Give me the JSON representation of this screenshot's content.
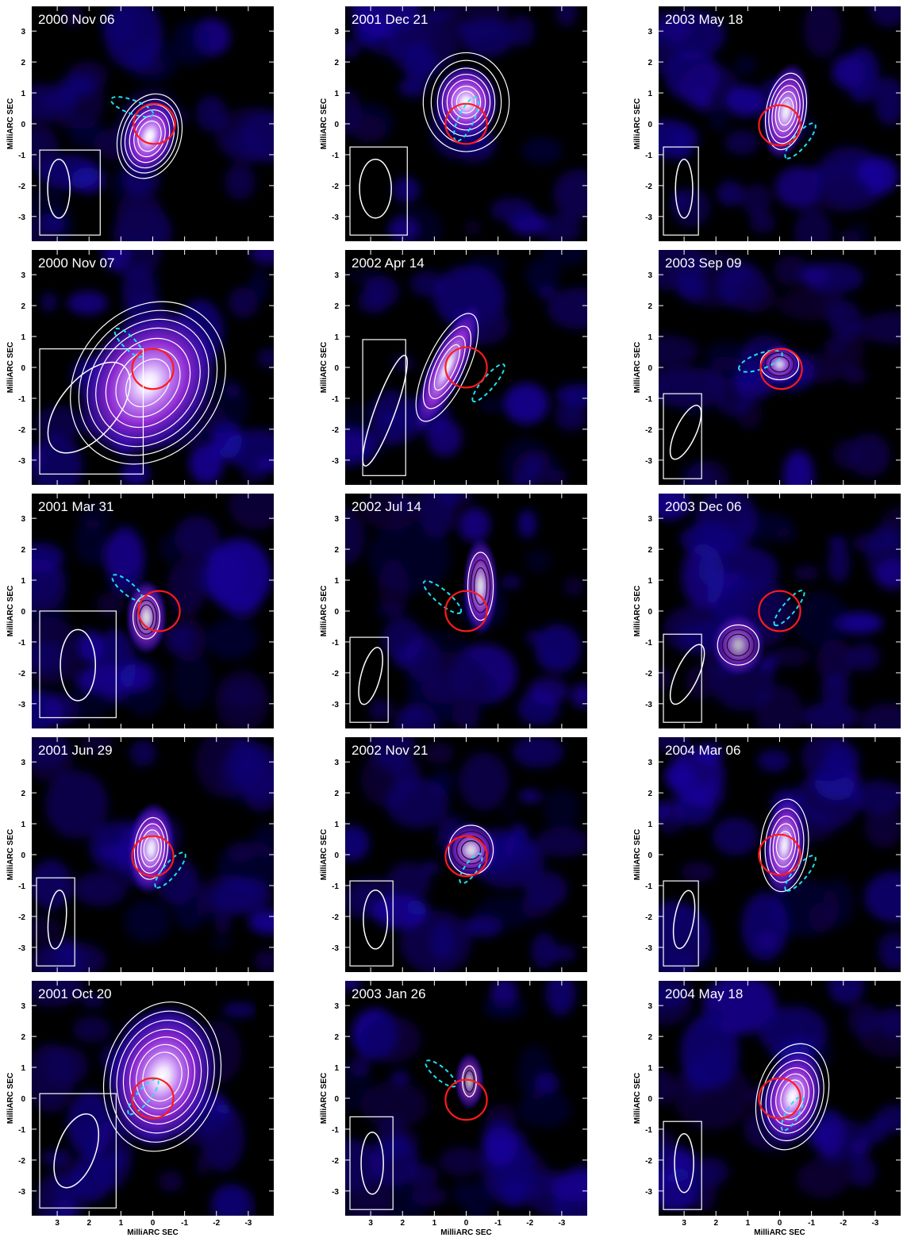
{
  "axes": {
    "ylabel": "MilliARC SEC",
    "xlabel": "MilliARC SEC",
    "range": [
      3.8,
      -3.8
    ],
    "ticks": [
      3,
      2,
      1,
      0,
      -1,
      -2,
      -3
    ]
  },
  "panels": [
    {
      "date": "2000 Nov 06",
      "core": [
        0.1,
        -0.4
      ],
      "core_size": [
        0.45,
        0.7
      ],
      "core_pa": 18,
      "intensity": 1.0,
      "contours": [
        [
          0.35,
          0.5
        ],
        [
          0.47,
          0.68
        ],
        [
          0.6,
          0.87
        ],
        [
          0.74,
          1.05
        ],
        [
          0.86,
          1.22
        ],
        [
          0.98,
          1.4
        ]
      ],
      "red": [
        -0.05,
        0.0
      ],
      "cyan": [
        0.65,
        0.55,
        0.7,
        0.22,
        20
      ],
      "beam_box": [
        3.55,
        -0.85,
        1.9,
        2.75
      ],
      "beam": [
        2.95,
        -2.1,
        0.35,
        0.95,
        0
      ]
    },
    {
      "date": "2001 Dec 21",
      "core": [
        0.0,
        0.7
      ],
      "core_size": [
        0.55,
        0.65
      ],
      "core_pa": 0,
      "intensity": 1.0,
      "contours": [
        [
          0.3,
          0.35
        ],
        [
          0.45,
          0.52
        ],
        [
          0.6,
          0.72
        ],
        [
          0.75,
          0.9
        ],
        [
          0.9,
          1.1
        ],
        [
          1.1,
          1.35
        ],
        [
          1.35,
          1.6
        ]
      ],
      "red": [
        0.0,
        0.0
      ],
      "cyan": [
        0.0,
        0.15,
        0.75,
        0.25,
        115
      ],
      "beam_box": [
        3.65,
        -0.75,
        1.8,
        2.85
      ],
      "beam": [
        2.85,
        -2.1,
        0.5,
        0.95,
        0
      ]
    },
    {
      "date": "2003 May 18",
      "core": [
        -0.2,
        0.4
      ],
      "core_size": [
        0.38,
        0.85
      ],
      "core_pa": 10,
      "intensity": 0.95,
      "contours": [
        [
          0.22,
          0.45
        ],
        [
          0.32,
          0.65
        ],
        [
          0.42,
          0.85
        ],
        [
          0.52,
          1.05
        ],
        [
          0.62,
          1.25
        ]
      ],
      "red": [
        0.0,
        -0.05
      ],
      "cyan": [
        -0.65,
        -0.55,
        0.7,
        0.22,
        130
      ],
      "beam_box": [
        3.65,
        -0.75,
        1.1,
        2.85
      ],
      "beam": [
        3.0,
        -2.1,
        0.27,
        0.95,
        0
      ]
    },
    {
      "date": "2000 Nov 07",
      "core": [
        0.15,
        -0.5
      ],
      "core_size": [
        1.05,
        1.4
      ],
      "core_pa": 38,
      "intensity": 1.0,
      "contours": [
        [
          0.6,
          0.85
        ],
        [
          0.9,
          1.2
        ],
        [
          1.2,
          1.55
        ],
        [
          1.5,
          1.9
        ],
        [
          1.75,
          2.2
        ],
        [
          2.0,
          2.5
        ],
        [
          2.25,
          2.8
        ]
      ],
      "red": [
        0.0,
        -0.05
      ],
      "cyan": [
        0.75,
        0.8,
        0.6,
        0.2,
        45
      ],
      "beam_box": [
        3.55,
        0.6,
        3.25,
        4.05
      ],
      "beam": [
        2.0,
        -1.3,
        0.9,
        1.75,
        40
      ]
    },
    {
      "date": "2002 Apr 14",
      "core": [
        0.6,
        0.0
      ],
      "core_size": [
        0.3,
        1.2
      ],
      "core_pa": 25,
      "intensity": 0.95,
      "contours": [
        [
          0.25,
          0.8
        ],
        [
          0.38,
          1.1
        ],
        [
          0.5,
          1.45
        ],
        [
          0.65,
          1.9
        ]
      ],
      "red": [
        0.0,
        0.0
      ],
      "cyan": [
        -0.7,
        -0.5,
        0.75,
        0.2,
        130
      ],
      "beam_box": [
        3.25,
        0.9,
        1.35,
        4.4
      ],
      "beam": [
        2.55,
        -1.4,
        0.32,
        1.9,
        20
      ]
    },
    {
      "date": "2003 Sep 09",
      "core": [
        0.0,
        0.1
      ],
      "core_size": [
        0.35,
        0.35
      ],
      "core_pa": 0,
      "intensity": 0.8,
      "contours": [
        [
          0.3,
          0.25
        ],
        [
          0.45,
          0.38
        ],
        [
          0.6,
          0.5
        ]
      ],
      "red": [
        -0.05,
        -0.05
      ],
      "cyan": [
        0.6,
        0.2,
        0.72,
        0.25,
        160
      ],
      "beam_box": [
        3.65,
        -0.85,
        1.2,
        2.75
      ],
      "beam": [
        2.95,
        -2.1,
        0.32,
        0.95,
        25
      ]
    },
    {
      "date": "2001 Mar 31",
      "core": [
        0.2,
        -0.2
      ],
      "core_size": [
        0.35,
        0.65
      ],
      "core_pa": 0,
      "intensity": 0.85,
      "contours": [
        [
          0.22,
          0.4
        ],
        [
          0.32,
          0.55
        ],
        [
          0.42,
          0.7
        ]
      ],
      "red": [
        -0.2,
        0.0
      ],
      "cyan": [
        0.8,
        0.75,
        0.6,
        0.2,
        40
      ],
      "beam_box": [
        3.55,
        0.0,
        2.4,
        3.45
      ],
      "beam": [
        2.35,
        -1.75,
        0.55,
        1.15,
        0
      ]
    },
    {
      "date": "2002 Jul 14",
      "core": [
        -0.45,
        0.8
      ],
      "core_size": [
        0.3,
        0.85
      ],
      "core_pa": 0,
      "intensity": 0.85,
      "contours": [
        [
          0.2,
          0.6
        ],
        [
          0.3,
          0.85
        ],
        [
          0.4,
          1.1
        ]
      ],
      "red": [
        0.0,
        0.0
      ],
      "cyan": [
        0.75,
        0.45,
        0.75,
        0.22,
        40
      ],
      "beam_box": [
        3.65,
        -0.85,
        1.2,
        2.75
      ],
      "beam": [
        3.0,
        -2.1,
        0.3,
        0.95,
        15
      ]
    },
    {
      "date": "2003 Dec 06",
      "core": [
        1.3,
        -1.1
      ],
      "core_size": [
        0.45,
        0.55
      ],
      "core_pa": 0,
      "intensity": 0.7,
      "contours": [
        [
          0.35,
          0.35
        ],
        [
          0.5,
          0.5
        ],
        [
          0.65,
          0.65
        ]
      ],
      "red": [
        0.0,
        0.0
      ],
      "cyan": [
        -0.3,
        0.1,
        0.7,
        0.2,
        130
      ],
      "beam_box": [
        3.65,
        -0.75,
        1.2,
        2.85
      ],
      "beam": [
        2.9,
        -2.05,
        0.35,
        1.05,
        25
      ]
    },
    {
      "date": "2001 Jun 29",
      "core": [
        0.05,
        0.2
      ],
      "core_size": [
        0.4,
        0.8
      ],
      "core_pa": 5,
      "intensity": 0.95,
      "contours": [
        [
          0.23,
          0.4
        ],
        [
          0.32,
          0.6
        ],
        [
          0.42,
          0.8
        ],
        [
          0.52,
          1.0
        ]
      ],
      "red": [
        0.0,
        -0.05
      ],
      "cyan": [
        -0.55,
        -0.5,
        0.7,
        0.22,
        130
      ],
      "beam_box": [
        3.65,
        -0.75,
        1.2,
        2.85
      ],
      "beam": [
        3.0,
        -2.1,
        0.28,
        0.95,
        5
      ]
    },
    {
      "date": "2002 Nov 21",
      "core": [
        -0.15,
        0.15
      ],
      "core_size": [
        0.45,
        0.5
      ],
      "core_pa": 0,
      "intensity": 0.85,
      "contours": [
        [
          0.3,
          0.3
        ],
        [
          0.45,
          0.45
        ],
        [
          0.6,
          0.6
        ],
        [
          0.7,
          0.8
        ]
      ],
      "red": [
        0.0,
        -0.05
      ],
      "cyan": [
        -0.15,
        -0.45,
        0.55,
        0.2,
        125
      ],
      "beam_box": [
        3.65,
        -0.85,
        1.35,
        2.75
      ],
      "beam": [
        2.85,
        -2.1,
        0.38,
        0.95,
        0
      ]
    },
    {
      "date": "2004 Mar 06",
      "core": [
        -0.15,
        0.3
      ],
      "core_size": [
        0.35,
        0.9
      ],
      "core_pa": 5,
      "intensity": 0.95,
      "contours": [
        [
          0.25,
          0.45
        ],
        [
          0.35,
          0.7
        ],
        [
          0.45,
          0.95
        ],
        [
          0.6,
          1.2
        ],
        [
          0.75,
          1.5
        ]
      ],
      "red": [
        0.0,
        0.0
      ],
      "cyan": [
        -0.65,
        -0.6,
        0.7,
        0.22,
        130
      ],
      "beam_box": [
        3.65,
        -0.85,
        1.1,
        2.75
      ],
      "beam": [
        3.0,
        -2.1,
        0.3,
        0.95,
        10
      ]
    },
    {
      "date": "2001 Oct 20",
      "core": [
        -0.3,
        0.7
      ],
      "core_size": [
        0.9,
        1.25
      ],
      "core_pa": 15,
      "intensity": 1.0,
      "contours": [
        [
          0.6,
          0.8
        ],
        [
          0.8,
          1.05
        ],
        [
          1.0,
          1.3
        ],
        [
          1.2,
          1.55
        ],
        [
          1.4,
          1.85
        ],
        [
          1.6,
          2.15
        ],
        [
          1.8,
          2.45
        ]
      ],
      "red": [
        0.0,
        0.0
      ],
      "cyan": [
        0.3,
        0.05,
        0.7,
        0.22,
        130
      ],
      "beam_box": [
        3.55,
        0.15,
        2.4,
        3.7
      ],
      "beam": [
        2.4,
        -1.7,
        0.6,
        1.25,
        20
      ]
    },
    {
      "date": "2003 Jan 26",
      "core": [
        -0.1,
        0.55
      ],
      "core_size": [
        0.25,
        0.5
      ],
      "core_pa": 0,
      "intensity": 0.7,
      "contours": [
        [
          0.15,
          0.35
        ],
        [
          0.22,
          0.5
        ]
      ],
      "red": [
        0.0,
        -0.05
      ],
      "cyan": [
        0.8,
        0.8,
        0.6,
        0.2,
        40
      ],
      "beam_box": [
        3.65,
        -0.6,
        1.35,
        3.0
      ],
      "beam": [
        2.95,
        -2.1,
        0.35,
        1.0,
        0
      ]
    },
    {
      "date": "2004 May 18",
      "core": [
        -0.4,
        0.05
      ],
      "core_size": [
        0.5,
        0.85
      ],
      "core_pa": 15,
      "intensity": 1.0,
      "contours": [
        [
          0.35,
          0.55
        ],
        [
          0.5,
          0.75
        ],
        [
          0.65,
          0.95
        ],
        [
          0.8,
          1.2
        ],
        [
          0.95,
          1.45
        ],
        [
          1.1,
          1.75
        ]
      ],
      "red": [
        0.0,
        0.0
      ],
      "cyan": [
        -0.4,
        -0.5,
        0.6,
        0.2,
        120
      ],
      "beam_box": [
        3.65,
        -0.75,
        1.2,
        2.85
      ],
      "beam": [
        3.0,
        -2.1,
        0.3,
        0.95,
        0
      ]
    }
  ]
}
